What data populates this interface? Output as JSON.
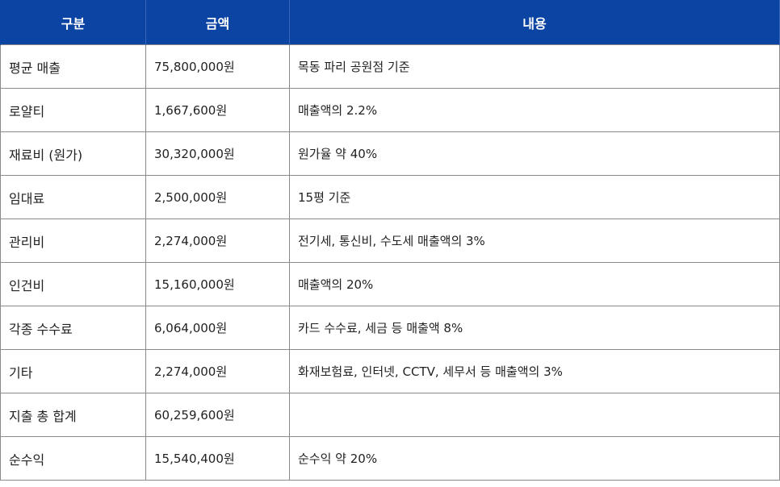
{
  "header": {
    "col_category": "구분",
    "col_amount": "금액",
    "col_content": "내용"
  },
  "rows": [
    {
      "category": "평균 매출",
      "amount": "75,800,000원",
      "content": "목동 파리 공원점 기준"
    },
    {
      "category": "로얄티",
      "amount": "1,667,600원",
      "content": "매출액의 2.2%"
    },
    {
      "category": "재료비 (원가)",
      "amount": "30,320,000원",
      "content": "원가율 약 40%"
    },
    {
      "category": "임대료",
      "amount": "2,500,000원",
      "content": "15평 기준"
    },
    {
      "category": "관리비",
      "amount": "2,274,000원",
      "content": "전기세, 통신비, 수도세 매출액의 3%"
    },
    {
      "category": "인건비",
      "amount": "15,160,000원",
      "content": "매출액의 20%"
    },
    {
      "category": "각종 수수료",
      "amount": "6,064,000원",
      "content": "카드 수수료, 세금 등 매출액 8%"
    },
    {
      "category": "기타",
      "amount": "2,274,000원",
      "content": "화재보험료, 인터넷, CCTV, 세무서 등 매출액의 3%"
    },
    {
      "category": "지출 총 합계",
      "amount": "60,259,600원",
      "content": ""
    },
    {
      "category": "순수익",
      "amount": "15,540,400원",
      "content": "순수익 약 20%"
    }
  ],
  "colors": {
    "header_bg": "#0b44a3",
    "header_text": "#ffffff",
    "border": "#8a8a8a"
  }
}
